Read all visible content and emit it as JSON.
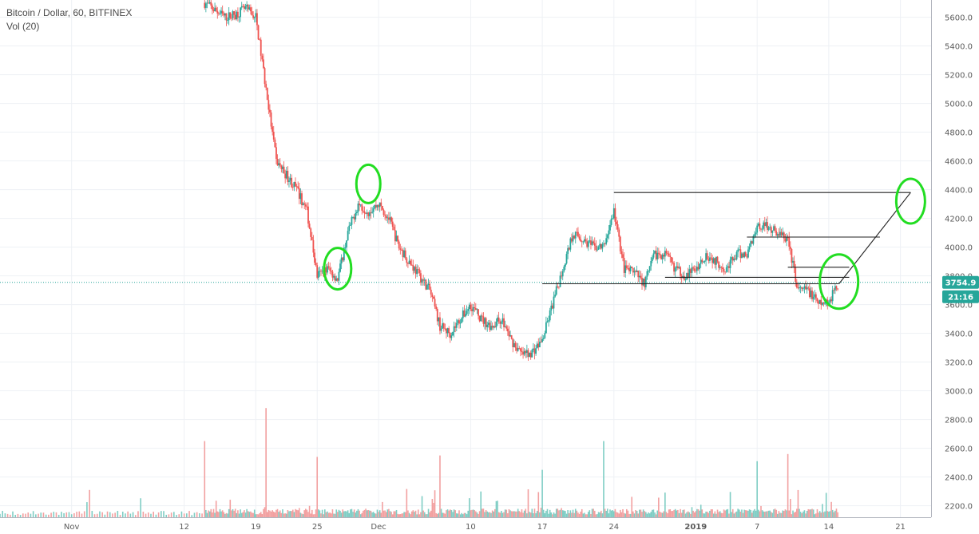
{
  "legend": {
    "symbol_line": "Bitcoin / Dollar, 60, BITFINEX",
    "volume_line": "Vol (20)"
  },
  "price_badge": {
    "value": "3754.9",
    "color": "#26a69a"
  },
  "time_badge": {
    "value": "21:16",
    "color": "#26a69a"
  },
  "colors": {
    "up": "#26a69a",
    "down": "#ef5350",
    "vol_up": "#7fcdc4",
    "vol_down": "#f2a0a0",
    "grid": "#eef1f5",
    "annotation_circle": "#22dd22",
    "trend_lines": "#222222",
    "price_line": "#26a69a"
  },
  "chart_data": {
    "type": "candlestick",
    "title": "Bitcoin / Dollar, 60, BITFINEX",
    "y_ticks": [
      2200,
      2400,
      2600,
      2800,
      3000,
      3200,
      3400,
      3600,
      3800,
      4000,
      4200,
      4400,
      4600,
      4800,
      5000,
      5200,
      5400,
      5600
    ],
    "y_tick_labels": [
      "2200.0",
      "2400.0",
      "2600.0",
      "2800.0",
      "3000.0",
      "3200.0",
      "3400.0",
      "3600.0",
      "3800.0",
      "4000.0",
      "4200.0",
      "4400.0",
      "4600.0",
      "4800.0",
      "5000.0",
      "5200.0",
      "5400.0",
      "5600.0"
    ],
    "y_range": [
      2120,
      5720
    ],
    "x_ticks": [
      {
        "date": "2018-11-01",
        "label": "Nov"
      },
      {
        "date": "2018-11-12",
        "label": "12"
      },
      {
        "date": "2018-11-19",
        "label": "19"
      },
      {
        "date": "2018-11-25",
        "label": "25"
      },
      {
        "date": "2018-12-01",
        "label": "Dec"
      },
      {
        "date": "2018-12-10",
        "label": "10"
      },
      {
        "date": "2018-12-17",
        "label": "17"
      },
      {
        "date": "2018-12-24",
        "label": "24"
      },
      {
        "date": "2019-01-01",
        "label": "2019"
      },
      {
        "date": "2019-01-07",
        "label": "7"
      },
      {
        "date": "2019-01-14",
        "label": "14"
      },
      {
        "date": "2019-01-21",
        "label": "21"
      }
    ],
    "x_range": [
      "2018-10-25",
      "2019-01-24"
    ],
    "last_price": 3754.9,
    "price_path": [
      [
        "2018-11-14",
        5700
      ],
      [
        "2018-11-15",
        5650
      ],
      [
        "2018-11-16",
        5600
      ],
      [
        "2018-11-17",
        5620
      ],
      [
        "2018-11-18",
        5660
      ],
      [
        "2018-11-19",
        5600
      ],
      [
        "2018-11-20",
        5100
      ],
      [
        "2018-11-21",
        4600
      ],
      [
        "2018-11-22",
        4500
      ],
      [
        "2018-11-23",
        4400
      ],
      [
        "2018-11-24",
        4250
      ],
      [
        "2018-11-25",
        3800
      ],
      [
        "2018-11-26",
        3850
      ],
      [
        "2018-11-27",
        3780
      ],
      [
        "2018-11-28",
        4100
      ],
      [
        "2018-11-29",
        4300
      ],
      [
        "2018-11-30",
        4250
      ],
      [
        "2018-12-01",
        4300
      ],
      [
        "2018-12-02",
        4200
      ],
      [
        "2018-12-03",
        4000
      ],
      [
        "2018-12-04",
        3900
      ],
      [
        "2018-12-05",
        3800
      ],
      [
        "2018-12-06",
        3700
      ],
      [
        "2018-12-07",
        3450
      ],
      [
        "2018-12-08",
        3400
      ],
      [
        "2018-12-09",
        3500
      ],
      [
        "2018-12-10",
        3600
      ],
      [
        "2018-12-11",
        3500
      ],
      [
        "2018-12-12",
        3450
      ],
      [
        "2018-12-13",
        3500
      ],
      [
        "2018-12-14",
        3350
      ],
      [
        "2018-12-15",
        3250
      ],
      [
        "2018-12-16",
        3270
      ],
      [
        "2018-12-17",
        3350
      ],
      [
        "2018-12-18",
        3600
      ],
      [
        "2018-12-19",
        3850
      ],
      [
        "2018-12-20",
        4100
      ],
      [
        "2018-12-21",
        4050
      ],
      [
        "2018-12-22",
        4000
      ],
      [
        "2018-12-23",
        4000
      ],
      [
        "2018-12-24",
        4250
      ],
      [
        "2018-12-25",
        3850
      ],
      [
        "2018-12-26",
        3820
      ],
      [
        "2018-12-27",
        3750
      ],
      [
        "2018-12-28",
        3950
      ],
      [
        "2018-12-29",
        3950
      ],
      [
        "2018-12-30",
        3850
      ],
      [
        "2018-12-31",
        3800
      ],
      [
        "2019-01-01",
        3850
      ],
      [
        "2019-01-02",
        3950
      ],
      [
        "2019-01-03",
        3900
      ],
      [
        "2019-01-04",
        3850
      ],
      [
        "2019-01-05",
        3950
      ],
      [
        "2019-01-06",
        3950
      ],
      [
        "2019-01-07",
        4150
      ],
      [
        "2019-01-08",
        4150
      ],
      [
        "2019-01-09",
        4100
      ],
      [
        "2019-01-10",
        4050
      ],
      [
        "2019-01-11",
        3700
      ],
      [
        "2019-01-12",
        3700
      ],
      [
        "2019-01-13",
        3600
      ],
      [
        "2019-01-14",
        3620
      ],
      [
        "2019-01-15",
        3754.9
      ]
    ],
    "volume_spikes": [
      [
        "2018-11-14",
        2650
      ],
      [
        "2018-11-20",
        2880
      ],
      [
        "2018-11-25",
        2540
      ],
      [
        "2018-12-07",
        2550
      ],
      [
        "2018-12-17",
        2450
      ],
      [
        "2018-12-23",
        2650
      ],
      [
        "2019-01-07",
        2510
      ],
      [
        "2019-01-10",
        2560
      ]
    ],
    "annotations": {
      "circles": [
        {
          "date": "2018-11-27",
          "price": 3850
        },
        {
          "date": "2018-11-30",
          "price": 4440
        },
        {
          "date": "2019-01-15",
          "price": 3760
        },
        {
          "date": "2019-01-22",
          "price": 4320
        }
      ],
      "hlines": [
        {
          "from": "2018-12-24",
          "to": "2019-01-22",
          "price": 4380
        },
        {
          "from": "2019-01-06",
          "to": "2019-01-19",
          "price": 4070
        },
        {
          "from": "2019-01-10",
          "to": "2019-01-16",
          "price": 3860
        },
        {
          "from": "2018-12-29",
          "to": "2019-01-16",
          "price": 3790
        },
        {
          "from": "2018-12-17",
          "to": "2019-01-15",
          "price": 3745
        }
      ],
      "diagonal": [
        [
          "2019-01-15",
          3745
        ],
        [
          "2019-01-22",
          4380
        ]
      ]
    }
  }
}
